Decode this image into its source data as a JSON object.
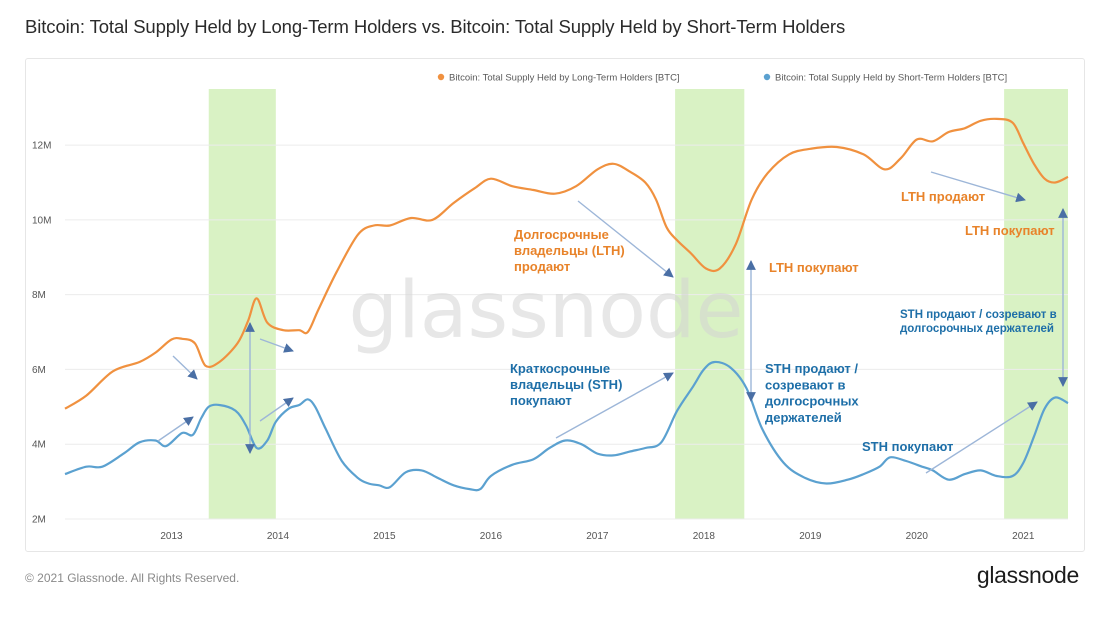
{
  "page": {
    "title": "Bitcoin: Total Supply Held by Long-Term Holders vs. Bitcoin: Total Supply Held by Short-Term Holders",
    "copyright": "© 2021 Glassnode. All Rights Reserved.",
    "logo": "glassnode",
    "watermark": "glassnode"
  },
  "colors": {
    "lth": "#f0913f",
    "sth": "#5ba1d0",
    "highlight": "#d9f2c4",
    "arrow": "#9db6d8",
    "arrow_dark": "#4a6fa5",
    "annotation_orange": "#e8832a",
    "annotation_blue": "#1e6fa8"
  },
  "chart_data": {
    "type": "line",
    "title": "Bitcoin: Total Supply Held by Long-Term Holders vs. Bitcoin: Total Supply Held by Short-Term Holders",
    "xlabel": "",
    "ylabel": "",
    "xlim": [
      2012.0,
      2021.42
    ],
    "ylim": [
      2000000,
      13500000
    ],
    "x_ticks": [
      2013,
      2014,
      2015,
      2016,
      2017,
      2018,
      2019,
      2020,
      2021
    ],
    "x_tick_labels": [
      "2013",
      "2014",
      "2015",
      "2016",
      "2017",
      "2018",
      "2019",
      "2020",
      "2021"
    ],
    "y_ticks": [
      2000000,
      4000000,
      6000000,
      8000000,
      10000000,
      12000000
    ],
    "y_tick_labels": [
      "2M",
      "4M",
      "6M",
      "8M",
      "10M",
      "12M"
    ],
    "legend_position": "top-right",
    "highlight_ranges": [
      [
        2013.35,
        2013.98
      ],
      [
        2017.73,
        2018.38
      ],
      [
        2020.82,
        2021.42
      ]
    ],
    "series": [
      {
        "name": "Bitcoin: Total Supply Held by Long-Term Holders [BTC]",
        "color_key": "lth",
        "x": [
          2012.0,
          2012.2,
          2012.45,
          2012.7,
          2012.85,
          2013.0,
          2013.1,
          2013.22,
          2013.32,
          2013.45,
          2013.62,
          2013.72,
          2013.8,
          2013.9,
          2014.05,
          2014.2,
          2014.28,
          2014.38,
          2014.55,
          2014.75,
          2014.9,
          2015.05,
          2015.25,
          2015.45,
          2015.65,
          2015.85,
          2016.0,
          2016.2,
          2016.4,
          2016.6,
          2016.8,
          2017.0,
          2017.15,
          2017.3,
          2017.45,
          2017.55,
          2017.65,
          2017.75,
          2017.88,
          2018.02,
          2018.15,
          2018.3,
          2018.45,
          2018.6,
          2018.8,
          2019.0,
          2019.25,
          2019.5,
          2019.7,
          2019.85,
          2020.0,
          2020.15,
          2020.3,
          2020.45,
          2020.6,
          2020.75,
          2020.9,
          2021.0,
          2021.1,
          2021.2,
          2021.3,
          2021.42
        ],
        "y": [
          4950000,
          5300000,
          5950000,
          6200000,
          6450000,
          6800000,
          6820000,
          6700000,
          6100000,
          6200000,
          6700000,
          7300000,
          7900000,
          7250000,
          7050000,
          7050000,
          7000000,
          7600000,
          8600000,
          9600000,
          9850000,
          9850000,
          10050000,
          10000000,
          10450000,
          10850000,
          11100000,
          10900000,
          10800000,
          10700000,
          10900000,
          11350000,
          11500000,
          11300000,
          11000000,
          10550000,
          9800000,
          9450000,
          9100000,
          8700000,
          8700000,
          9350000,
          10550000,
          11250000,
          11750000,
          11900000,
          11950000,
          11750000,
          11350000,
          11650000,
          12150000,
          12100000,
          12350000,
          12450000,
          12650000,
          12700000,
          12600000,
          12050000,
          11500000,
          11100000,
          11000000,
          11150000
        ]
      },
      {
        "name": "Bitcoin: Total Supply Held by Short-Term Holders [BTC]",
        "color_key": "sth",
        "x": [
          2012.0,
          2012.2,
          2012.35,
          2012.55,
          2012.7,
          2012.85,
          2012.95,
          2013.1,
          2013.2,
          2013.28,
          2013.35,
          2013.45,
          2013.6,
          2013.7,
          2013.8,
          2013.9,
          2013.98,
          2014.1,
          2014.2,
          2014.28,
          2014.35,
          2014.45,
          2014.6,
          2014.75,
          2014.85,
          2014.95,
          2015.05,
          2015.2,
          2015.35,
          2015.5,
          2015.65,
          2015.8,
          2015.9,
          2016.0,
          2016.2,
          2016.4,
          2016.55,
          2016.7,
          2016.85,
          2017.0,
          2017.15,
          2017.3,
          2017.45,
          2017.6,
          2017.75,
          2017.9,
          2018.0,
          2018.1,
          2018.25,
          2018.4,
          2018.55,
          2018.75,
          2018.95,
          2019.15,
          2019.35,
          2019.5,
          2019.65,
          2019.75,
          2019.9,
          2020.05,
          2020.15,
          2020.3,
          2020.45,
          2020.6,
          2020.75,
          2020.9,
          2021.0,
          2021.1,
          2021.2,
          2021.3,
          2021.42
        ],
        "y": [
          3200000,
          3400000,
          3400000,
          3750000,
          4050000,
          4100000,
          3950000,
          4300000,
          4250000,
          4700000,
          5000000,
          5050000,
          4900000,
          4500000,
          3900000,
          4100000,
          4600000,
          4950000,
          5050000,
          5200000,
          5000000,
          4400000,
          3550000,
          3100000,
          2950000,
          2900000,
          2850000,
          3250000,
          3300000,
          3100000,
          2900000,
          2800000,
          2800000,
          3150000,
          3450000,
          3600000,
          3900000,
          4100000,
          4000000,
          3750000,
          3700000,
          3800000,
          3900000,
          4050000,
          4900000,
          5550000,
          6000000,
          6200000,
          6050000,
          5500000,
          4400000,
          3500000,
          3100000,
          2950000,
          3050000,
          3200000,
          3400000,
          3650000,
          3550000,
          3400000,
          3300000,
          3050000,
          3200000,
          3300000,
          3150000,
          3150000,
          3500000,
          4200000,
          4950000,
          5250000,
          5100000
        ]
      }
    ],
    "annotations": [
      {
        "lines": [
          "Долгосрочные",
          "владельцы (LTH)",
          "продают"
        ],
        "color_key": "annotation_orange",
        "size": "normal"
      },
      {
        "lines": [
          "LTH покупают"
        ],
        "color_key": "annotation_orange",
        "size": "normal"
      },
      {
        "lines": [
          "LTH продают"
        ],
        "color_key": "annotation_orange",
        "size": "normal"
      },
      {
        "lines": [
          "LTH покупают"
        ],
        "color_key": "annotation_orange",
        "size": "normal"
      },
      {
        "lines": [
          "Краткосрочные",
          "владельцы (STH)",
          "покупают"
        ],
        "color_key": "annotation_blue",
        "size": "normal"
      },
      {
        "lines": [
          "STH продают /",
          "созревают в",
          "долгосрочных",
          "держателей"
        ],
        "color_key": "annotation_blue",
        "size": "normal"
      },
      {
        "lines": [
          "STH покупают"
        ],
        "color_key": "annotation_blue",
        "size": "normal"
      },
      {
        "lines": [
          "STH продают / созревают в",
          "долгосрочных держателей"
        ],
        "color_key": "annotation_blue",
        "size": "small"
      }
    ]
  }
}
